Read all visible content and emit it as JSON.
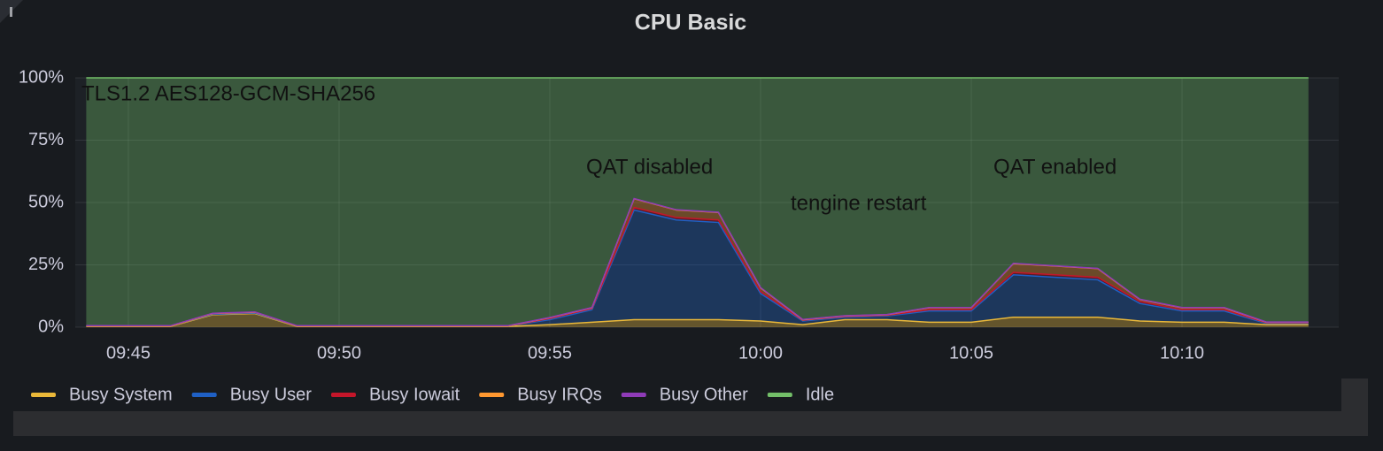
{
  "chart_data": {
    "type": "stacked-area",
    "title": "CPU Basic",
    "annotations": [
      "TLS1.2 AES128-GCM-SHA256",
      "QAT disabled",
      "tengine restart",
      "QAT enabled"
    ],
    "x": [
      "09:44",
      "09:45",
      "09:46",
      "09:47",
      "09:48",
      "09:49",
      "09:50",
      "09:51",
      "09:52",
      "09:53",
      "09:54",
      "09:55",
      "09:56",
      "09:57",
      "09:58",
      "09:59",
      "10:00",
      "10:01",
      "10:02",
      "10:03",
      "10:04",
      "10:05",
      "10:06",
      "10:07",
      "10:08",
      "10:09",
      "10:10",
      "10:11",
      "10:12",
      "10:13"
    ],
    "xlim": [
      "09:44",
      "10:13"
    ],
    "xticks": [
      "09:45",
      "09:50",
      "09:55",
      "10:00",
      "10:05",
      "10:10"
    ],
    "ylim": [
      0,
      100
    ],
    "yticks": [
      {
        "value": 0,
        "label": "0%"
      },
      {
        "value": 25,
        "label": "25%"
      },
      {
        "value": 50,
        "label": "50%"
      },
      {
        "value": 75,
        "label": "75%"
      },
      {
        "value": 100,
        "label": "100%"
      }
    ],
    "grid": true,
    "legend": "bottom",
    "series": [
      {
        "name": "Busy System",
        "color": "#eab839",
        "values": [
          0.3,
          0.3,
          0.3,
          5,
          5.5,
          0.3,
          0.3,
          0.3,
          0.3,
          0.3,
          0.3,
          1,
          2,
          3,
          3,
          3,
          2.5,
          1,
          3,
          3,
          2,
          2,
          4,
          4,
          4,
          2.5,
          2,
          2,
          1,
          1
        ]
      },
      {
        "name": "Busy User",
        "color": "#1f60c4",
        "values": [
          0.2,
          0.2,
          0.2,
          0.2,
          0.2,
          0.2,
          0.2,
          0.2,
          0.2,
          0.2,
          0.2,
          2,
          5,
          44,
          40,
          39,
          11,
          1.5,
          1,
          1.5,
          4.5,
          4.5,
          17,
          16,
          15,
          7,
          4.5,
          4.5,
          0.5,
          0.5
        ]
      },
      {
        "name": "Busy Iowait",
        "color": "#c4162a",
        "values": [
          0,
          0,
          0,
          0.3,
          0.3,
          0,
          0,
          0,
          0,
          0,
          0,
          0.5,
          0.5,
          1,
          1,
          1,
          0.8,
          0.3,
          0.3,
          0.3,
          0.5,
          0.5,
          1,
          1,
          1,
          0.8,
          0.5,
          0.5,
          0.3,
          0.3
        ]
      },
      {
        "name": "Busy IRQs",
        "color": "#ff9830",
        "values": [
          0,
          0,
          0,
          0,
          0,
          0,
          0,
          0,
          0,
          0,
          0,
          0.3,
          0.3,
          3.5,
          3,
          3,
          1.5,
          0.2,
          0.2,
          0.2,
          0.8,
          0.8,
          3.5,
          3.5,
          3.5,
          0.8,
          0.8,
          0.8,
          0.2,
          0.2
        ]
      },
      {
        "name": "Busy Other",
        "color": "#8f3bb8",
        "values": [
          0.1,
          0.1,
          0.1,
          0.1,
          0.1,
          0.1,
          0.1,
          0.1,
          0.1,
          0.1,
          0.1,
          0.1,
          0.1,
          0.1,
          0.1,
          0.1,
          0.1,
          0.1,
          0.1,
          0.1,
          0.1,
          0.1,
          0.1,
          0.1,
          0.1,
          0.1,
          0.1,
          0.1,
          0.1,
          0.1
        ]
      },
      {
        "name": "Idle",
        "color": "#73bf69",
        "values": [
          99.4,
          99.4,
          99.4,
          94.4,
          93.9,
          99.4,
          99.4,
          99.4,
          99.4,
          99.4,
          99.4,
          96.1,
          92.1,
          48.4,
          52.9,
          53.9,
          84.1,
          96.9,
          95.4,
          94.9,
          92.1,
          92.1,
          74.4,
          75.4,
          76.4,
          88.8,
          92.1,
          92.1,
          97.9,
          97.9
        ]
      }
    ]
  }
}
